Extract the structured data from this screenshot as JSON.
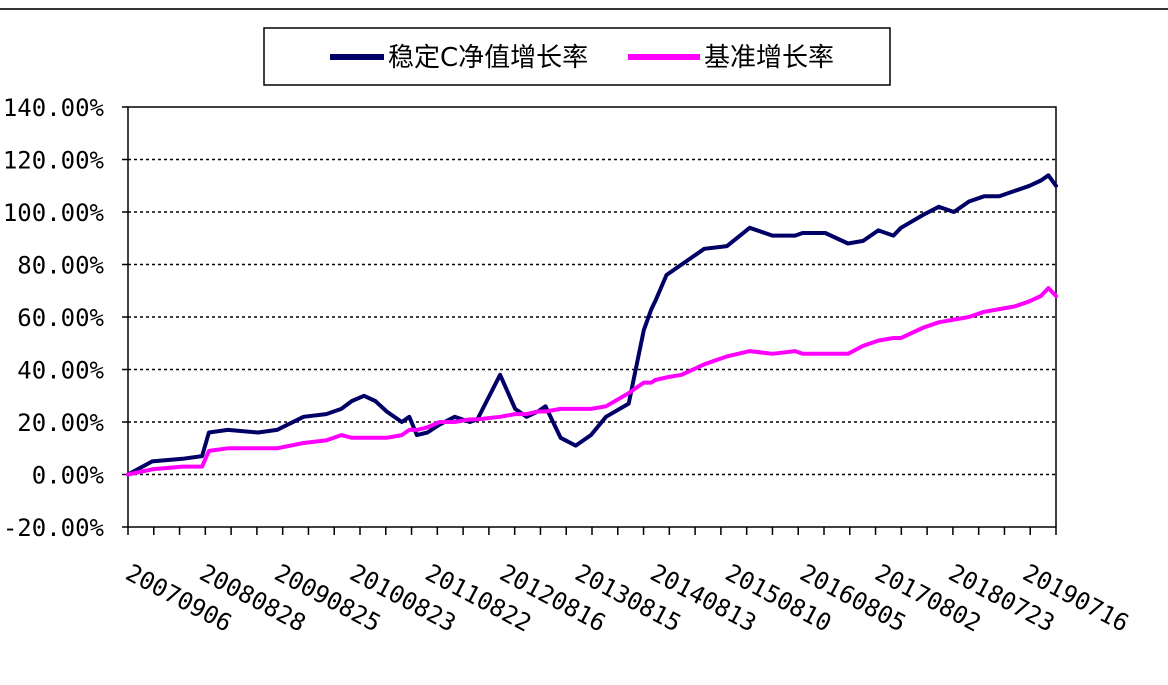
{
  "chart_data": {
    "type": "line",
    "title": "",
    "xlabel": "",
    "ylabel": "",
    "ylim": [
      -20,
      140
    ],
    "y_ticks": [
      "140.00%",
      "120.00%",
      "100.00%",
      "80.00%",
      "60.00%",
      "40.00%",
      "20.00%",
      "0.00%",
      "-20.00%"
    ],
    "x_tick_labels": [
      "20070906",
      "20080828",
      "20090825",
      "20100823",
      "20110822",
      "20120816",
      "20130815",
      "20140813",
      "20150810",
      "20160805",
      "20170802",
      "20180723",
      "20190716"
    ],
    "grid": "horizontal-dotted",
    "legend_position": "top",
    "x": [
      2007.68,
      2008.0,
      2008.4,
      2008.66,
      2008.75,
      2009.0,
      2009.4,
      2009.65,
      2010.0,
      2010.3,
      2010.5,
      2010.64,
      2010.8,
      2010.95,
      2011.1,
      2011.3,
      2011.4,
      2011.5,
      2011.64,
      2011.8,
      2012.0,
      2012.2,
      2012.3,
      2012.6,
      2012.8,
      2012.95,
      2013.1,
      2013.2,
      2013.4,
      2013.6,
      2013.8,
      2014.0,
      2014.3,
      2014.5,
      2014.6,
      2014.65,
      2014.8,
      2015.0,
      2015.3,
      2015.6,
      2015.9,
      2016.2,
      2016.5,
      2016.6,
      2016.9,
      2017.2,
      2017.4,
      2017.6,
      2017.8,
      2017.9,
      2018.2,
      2018.4,
      2018.6,
      2018.8,
      2019.0,
      2019.2,
      2019.4,
      2019.6,
      2019.75,
      2019.85,
      2019.95
    ],
    "series": [
      {
        "name": "稳定C净值增长率",
        "color": "#000066",
        "values": [
          0,
          5,
          6,
          7,
          16,
          17,
          16,
          17,
          22,
          23,
          25,
          28,
          30,
          28,
          24,
          20,
          22,
          15,
          16,
          19,
          22,
          20,
          21,
          38,
          25,
          22,
          24,
          26,
          14,
          11,
          15,
          22,
          27,
          55,
          63,
          66,
          76,
          80,
          86,
          87,
          94,
          91,
          91,
          92,
          92,
          88,
          89,
          93,
          91,
          94,
          99,
          102,
          100,
          104,
          106,
          106,
          108,
          110,
          112,
          114,
          110
        ],
        "endpoint_value": 110
      },
      {
        "name": "基准增长率",
        "color": "#ff00ff",
        "values": [
          0,
          2,
          3,
          3,
          9,
          10,
          10,
          10,
          12,
          13,
          15,
          14,
          14,
          14,
          14,
          15,
          17,
          17,
          18,
          20,
          20,
          21,
          21,
          22,
          23,
          23,
          24,
          24,
          25,
          25,
          25,
          26,
          31,
          35,
          35,
          36,
          37,
          38,
          42,
          45,
          47,
          46,
          47,
          46,
          46,
          46,
          49,
          51,
          52,
          52,
          56,
          58,
          59,
          60,
          62,
          63,
          64,
          66,
          68,
          71,
          68
        ],
        "endpoint_value": 68
      }
    ]
  }
}
